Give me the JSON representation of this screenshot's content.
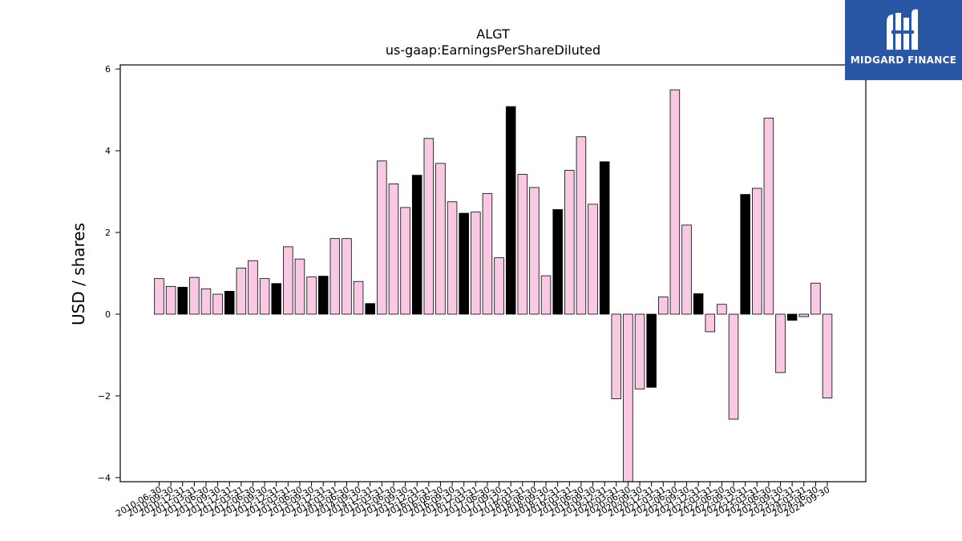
{
  "chart_data": {
    "type": "bar",
    "title": "ALGT",
    "subtitle": "us-gaap:EarningsPerShareDiluted",
    "ylabel": "USD / shares",
    "ylim": [
      -4.1,
      6.1
    ],
    "yticks": [
      -4,
      -2,
      0,
      2,
      4,
      6
    ],
    "ytick_labels": [
      "−4",
      "−2",
      "0",
      "2",
      "4",
      "6"
    ],
    "colors": {
      "pink": "#f9c8e2",
      "black": "#000000",
      "edge": "#000000"
    },
    "categories": [
      "2010-06-30",
      "2010-09-30",
      "2010-12-31",
      "2011-03-31",
      "2011-06-30",
      "2011-09-30",
      "2011-12-31",
      "2012-03-31",
      "2012-06-30",
      "2012-09-30",
      "2012-12-31",
      "2013-03-31",
      "2013-06-30",
      "2013-09-30",
      "2013-12-31",
      "2014-03-31",
      "2014-06-30",
      "2014-09-30",
      "2014-12-31",
      "2015-03-31",
      "2015-06-30",
      "2015-09-30",
      "2015-12-31",
      "2016-03-31",
      "2016-06-30",
      "2016-09-30",
      "2016-12-31",
      "2017-03-31",
      "2017-06-30",
      "2017-09-30",
      "2017-12-31",
      "2018-03-31",
      "2018-06-30",
      "2018-09-30",
      "2018-12-31",
      "2019-03-31",
      "2019-06-30",
      "2019-09-30",
      "2019-12-31",
      "2020-03-31",
      "2020-06-30",
      "2020-09-30",
      "2020-12-31",
      "2021-03-31",
      "2021-06-30",
      "2021-09-30",
      "2021-12-31",
      "2022-03-31",
      "2022-06-30",
      "2022-09-30",
      "2022-12-31",
      "2023-03-31",
      "2023-06-30",
      "2023-09-30",
      "2023-12-31",
      "2024-03-31",
      "2024-06-30",
      "2024-09-30"
    ],
    "xtick_labels": [
      "2010-06-30",
      "2010-09-30",
      "2010-12-31",
      "2011-03-31",
      "2011-06-30",
      "2011-09-30",
      "2011-12-31",
      "2012-03-31",
      "2012-06-30",
      "2012-09-30",
      "2012-12-31",
      "2013-03-31",
      "2013-06-30",
      "2013-09-30",
      "2013-12-31",
      "2014-03-31",
      "2014-06-30",
      "2014-09-30",
      "2014-12-31",
      "2015-03-31",
      "2015-06-30",
      "2015-09-30",
      "2015-12-31",
      "2016-03-31",
      "2016-06-30",
      "2016-09-30",
      "2016-12-31",
      "2017-03-31",
      "2017-06-30",
      "2017-09-30",
      "2017-12-31",
      "2018-03-31",
      "2018-06-30",
      "2018-09-30",
      "2018-12-31",
      "2019-03-31",
      "2019-06-30",
      "2019-09-30",
      "2019-12-31",
      "2020-03-31",
      "2020-06-30",
      "2020-09-30",
      "2020-12-31",
      "2021-03-31",
      "2021-06-30",
      "2021-09-30",
      "2021-12-31",
      "2022-03-31",
      "2022-06-30",
      "2022-09-30",
      "2022-12-31",
      "2023-03-31",
      "2023-06-30",
      "2023-09-30",
      "2023-12-31",
      "2024-03-31",
      "2024-06-30",
      "2024-09-30"
    ],
    "values": [
      0.87,
      0.68,
      0.66,
      0.9,
      0.62,
      0.49,
      0.56,
      1.13,
      1.31,
      0.87,
      0.75,
      1.65,
      1.35,
      0.91,
      0.93,
      1.85,
      1.85,
      0.8,
      0.26,
      3.75,
      3.19,
      2.61,
      3.4,
      4.3,
      3.69,
      2.75,
      2.47,
      2.5,
      2.95,
      1.38,
      5.08,
      3.42,
      3.1,
      0.94,
      2.56,
      3.52,
      4.34,
      2.69,
      3.73,
      -2.07,
      -4.1,
      -1.83,
      -1.79,
      0.42,
      5.49,
      2.18,
      0.5,
      -0.43,
      0.24,
      -2.57,
      2.93,
      3.08,
      4.8,
      -1.43,
      -0.15,
      -0.06,
      0.76,
      -2.05
    ],
    "bar_colors": [
      "pink",
      "pink",
      "black",
      "pink",
      "pink",
      "pink",
      "black",
      "pink",
      "pink",
      "pink",
      "black",
      "pink",
      "pink",
      "pink",
      "black",
      "pink",
      "pink",
      "pink",
      "black",
      "pink",
      "pink",
      "pink",
      "black",
      "pink",
      "pink",
      "pink",
      "black",
      "pink",
      "pink",
      "pink",
      "black",
      "pink",
      "pink",
      "pink",
      "black",
      "pink",
      "pink",
      "pink",
      "black",
      "pink",
      "pink",
      "pink",
      "black",
      "pink",
      "pink",
      "pink",
      "black",
      "pink",
      "pink",
      "pink",
      "black",
      "pink",
      "pink",
      "pink",
      "black",
      "pink",
      "pink",
      "pink"
    ],
    "grid": false,
    "legend": "none"
  },
  "logo": {
    "text": "MIDGARD FINANCE",
    "icon": "midgard-m-logo-icon"
  }
}
